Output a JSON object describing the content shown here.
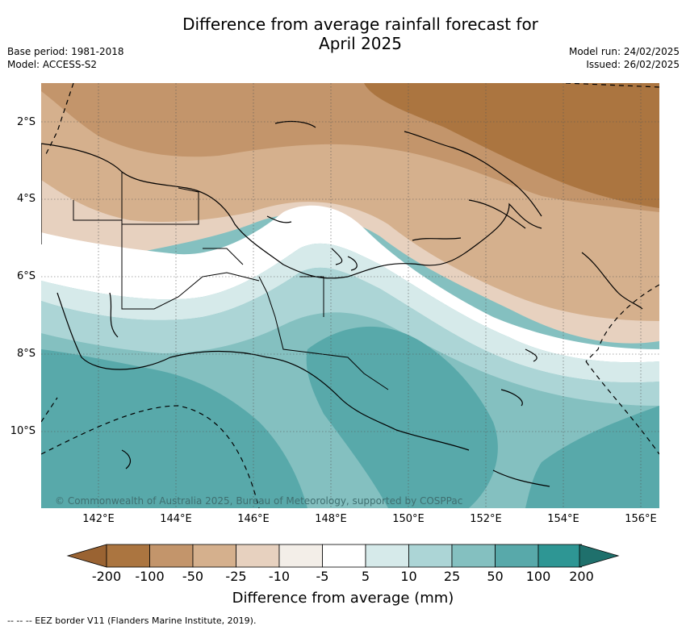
{
  "title_line1": "Difference from average rainfall forecast for",
  "title_line2": "April 2025",
  "meta_left": {
    "base_period": "Base period: 1981-2018",
    "model": "Model: ACCESS-S2"
  },
  "meta_right": {
    "model_run": "Model run: 24/02/2025",
    "issued": "Issued: 26/02/2025"
  },
  "lat_ticks": [
    "2°S",
    "4°S",
    "6°S",
    "8°S",
    "10°S"
  ],
  "lon_ticks": [
    "142°E",
    "144°E",
    "146°E",
    "148°E",
    "150°E",
    "152°E",
    "154°E",
    "156°E"
  ],
  "copyright": "© Commonwealth of Australia 2025, Bureau of Meteorology, supported by COSPPac",
  "colorbar": {
    "label": "Difference from average (mm)",
    "ticks": [
      "-200",
      "-100",
      "-50",
      "-25",
      "-10",
      "-5",
      "5",
      "10",
      "25",
      "50",
      "100",
      "200"
    ],
    "colors": [
      "#9a6332",
      "#ab7540",
      "#c3956b",
      "#d5b08d",
      "#e7d1bf",
      "#f3eee8",
      "#ffffff",
      "#d6eaea",
      "#acd5d6",
      "#84c0c0",
      "#58a9aa",
      "#2e9694",
      "#1f706c"
    ]
  },
  "footer": "-- -- -- EEZ border V11 (Flanders Marine Institute, 2019)."
}
